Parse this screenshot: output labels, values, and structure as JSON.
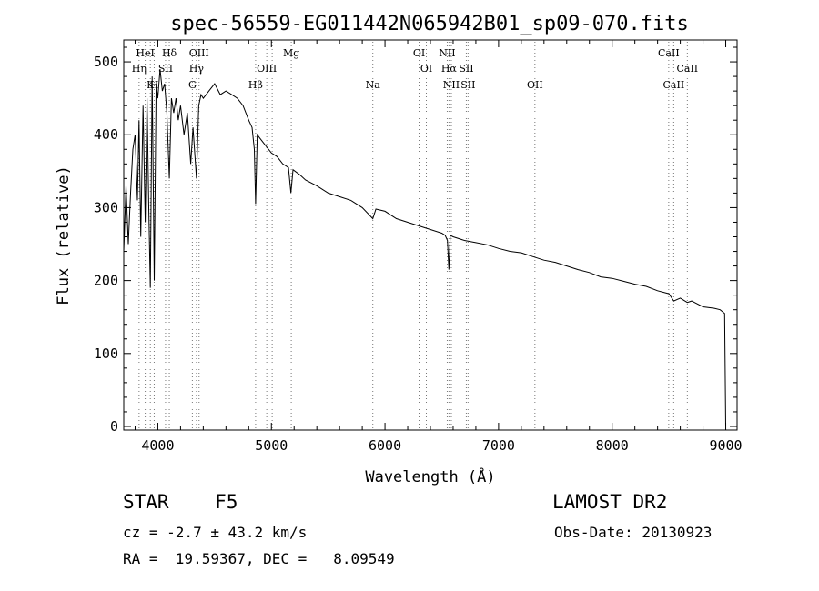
{
  "title": "spec-56559-EG011442N065942B01_sp09-070.fits",
  "info": {
    "class": "STAR    F5",
    "cz": "cz = -2.7 ± 43.2 km/s",
    "radec": "RA =  19.59367, DEC =   8.09549",
    "survey": "LAMOST DR2",
    "obs_date": "Obs-Date: 20130923"
  },
  "chart_data": {
    "type": "line",
    "title": "spec-56559-EG011442N065942B01_sp09-070.fits",
    "xlabel": "Wavelength (Å)",
    "ylabel": "Flux (relative)",
    "xlim": [
      3700,
      9100
    ],
    "ylim": [
      -5,
      530
    ],
    "grid": false,
    "x_ticks": [
      4000,
      5000,
      6000,
      7000,
      8000,
      9000
    ],
    "y_ticks": [
      0,
      100,
      200,
      300,
      400,
      500
    ],
    "series": [
      {
        "x": [
          3700,
          3720,
          3740,
          3760,
          3780,
          3800,
          3820,
          3835,
          3850,
          3870,
          3889,
          3905,
          3920,
          3934,
          3950,
          3968,
          3985,
          4000,
          4020,
          4040,
          4060,
          4080,
          4101,
          4120,
          4140,
          4160,
          4180,
          4200,
          4230,
          4260,
          4290,
          4310,
          4340,
          4360,
          4380,
          4400,
          4450,
          4500,
          4550,
          4600,
          4650,
          4700,
          4750,
          4800,
          4830,
          4850,
          4861,
          4875,
          4900,
          4950,
          5000,
          5050,
          5100,
          5150,
          5172,
          5190,
          5250,
          5300,
          5400,
          5500,
          5600,
          5700,
          5800,
          5893,
          5920,
          6000,
          6100,
          6200,
          6300,
          6400,
          6500,
          6530,
          6550,
          6563,
          6575,
          6600,
          6700,
          6800,
          6900,
          7000,
          7100,
          7200,
          7300,
          7400,
          7500,
          7600,
          7700,
          7800,
          7900,
          8000,
          8100,
          8200,
          8300,
          8400,
          8500,
          8542,
          8600,
          8662,
          8700,
          8800,
          8900,
          8950,
          8990,
          9000
        ],
        "y": [
          240,
          330,
          250,
          320,
          380,
          400,
          310,
          420,
          260,
          440,
          280,
          450,
          300,
          190,
          480,
          200,
          470,
          450,
          490,
          460,
          470,
          430,
          340,
          450,
          430,
          450,
          420,
          440,
          400,
          430,
          360,
          410,
          340,
          440,
          455,
          450,
          460,
          470,
          455,
          460,
          455,
          450,
          440,
          420,
          410,
          380,
          305,
          400,
          395,
          385,
          375,
          370,
          360,
          355,
          320,
          352,
          345,
          338,
          330,
          320,
          315,
          310,
          300,
          285,
          298,
          295,
          285,
          280,
          275,
          270,
          265,
          262,
          255,
          215,
          262,
          260,
          255,
          252,
          249,
          244,
          240,
          238,
          233,
          228,
          225,
          220,
          215,
          211,
          205,
          203,
          199,
          195,
          192,
          186,
          182,
          172,
          176,
          170,
          172,
          164,
          162,
          160,
          155,
          0
        ]
      }
    ],
    "line_labels": [
      {
        "text": "HeI",
        "x": 3889,
        "row": 1
      },
      {
        "text": "Hδ",
        "x": 4101,
        "row": 1
      },
      {
        "text": "OIII",
        "x": 4363,
        "row": 1
      },
      {
        "text": "Mg",
        "x": 5175,
        "row": 1
      },
      {
        "text": "OI",
        "x": 6300,
        "row": 1
      },
      {
        "text": "NII",
        "x": 6548,
        "row": 1
      },
      {
        "text": "CaII",
        "x": 8498,
        "row": 1
      },
      {
        "text": "Hη",
        "x": 3835,
        "row": 2
      },
      {
        "text": "SII",
        "x": 4068,
        "row": 2
      },
      {
        "text": "Hγ",
        "x": 4340,
        "row": 2
      },
      {
        "text": "OIII",
        "x": 4959,
        "row": 2
      },
      {
        "text": "OI",
        "x": 6364,
        "row": 2
      },
      {
        "text": "Hα",
        "x": 6563,
        "row": 2
      },
      {
        "text": "SII",
        "x": 6716,
        "row": 2
      },
      {
        "text": "CaII",
        "x": 8662,
        "row": 2
      },
      {
        "text": "K",
        "x": 3934,
        "row": 3
      },
      {
        "text": "H",
        "x": 3968,
        "row": 3
      },
      {
        "text": "G",
        "x": 4304,
        "row": 3
      },
      {
        "text": "Hβ",
        "x": 4861,
        "row": 3
      },
      {
        "text": "Na",
        "x": 5893,
        "row": 3
      },
      {
        "text": "NII",
        "x": 6584,
        "row": 3
      },
      {
        "text": "SII",
        "x": 6731,
        "row": 3
      },
      {
        "text": "OII",
        "x": 7320,
        "row": 3
      },
      {
        "text": "CaII",
        "x": 8542,
        "row": 3
      }
    ],
    "marker_lines": [
      3835,
      3889,
      3934,
      3968,
      4068,
      4101,
      4304,
      4340,
      4363,
      4861,
      4959,
      5007,
      5175,
      5893,
      6300,
      6364,
      6548,
      6563,
      6584,
      6716,
      6731,
      7320,
      8498,
      8542,
      8662
    ]
  }
}
